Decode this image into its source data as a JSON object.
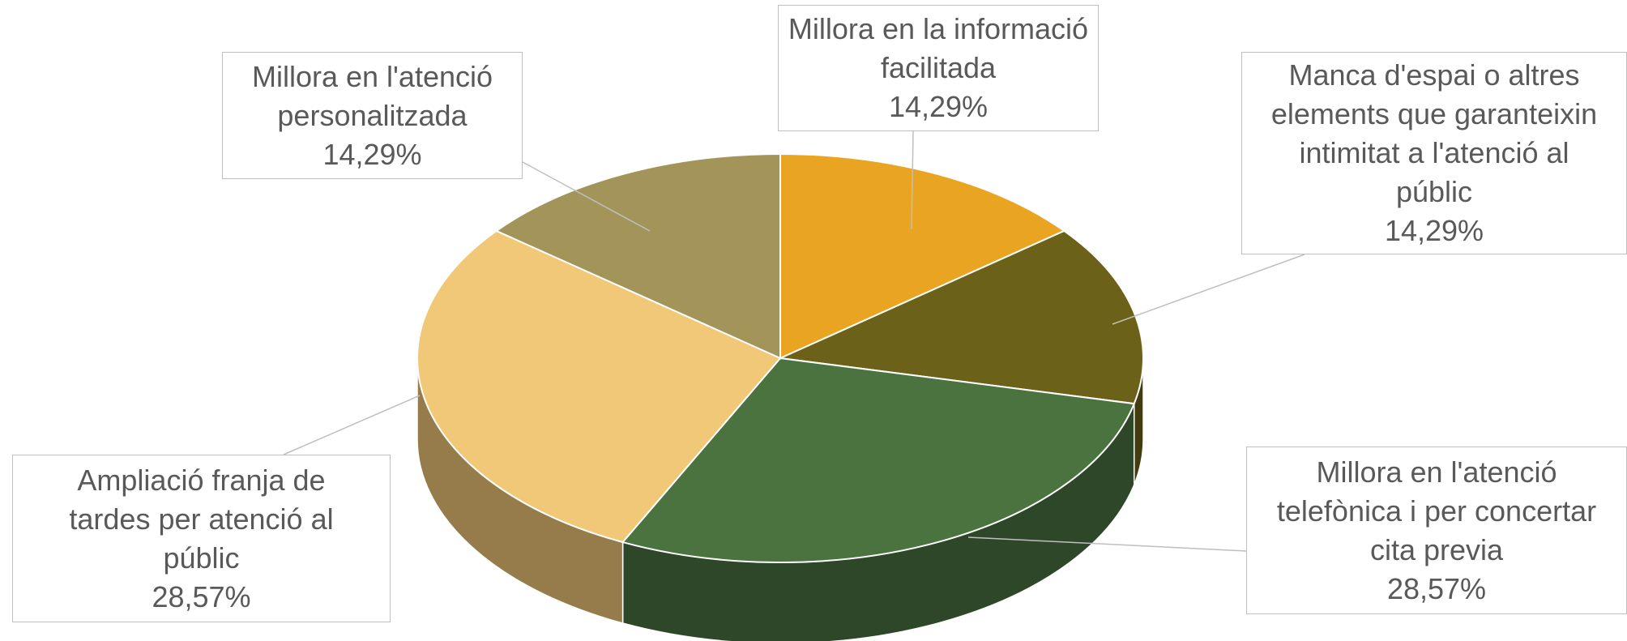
{
  "chart_data": {
    "type": "pie",
    "categories": [
      "Millora en la informació facilitada",
      "Manca d'espai o altres elements que garanteixin intimitat a l'atenció al públic",
      "Millora en l'atenció telefònica i per concertar cita previa",
      "Ampliació franja de tardes per atenció al públic",
      "Millora en l'atenció personalitzada"
    ],
    "values": [
      14.29,
      14.29,
      28.57,
      28.57,
      14.29
    ],
    "value_labels": [
      "14,29%",
      "14,29%",
      "28,57%",
      "28,57%",
      "14,29%"
    ],
    "colors": [
      "#e9a521",
      "#6b6118",
      "#4a7340",
      "#f0c878",
      "#a39459"
    ]
  }
}
